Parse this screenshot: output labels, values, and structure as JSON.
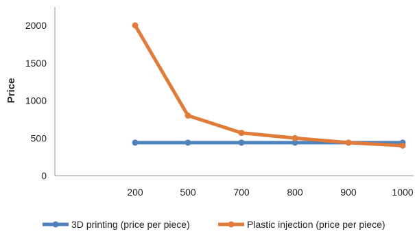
{
  "chart_data": {
    "type": "line",
    "title": "",
    "xlabel": "",
    "ylabel": "Price",
    "categories": [
      "200",
      "500",
      "700",
      "800",
      "900",
      "1000"
    ],
    "ylim": [
      0,
      2000
    ],
    "yticks": [
      0,
      500,
      1000,
      1500,
      2000
    ],
    "grid": false,
    "legend_position": "bottom",
    "series": [
      {
        "name": "3D printing (price per piece)",
        "color": "#4f81bd",
        "values": [
          440,
          440,
          440,
          440,
          440,
          440
        ]
      },
      {
        "name": "Plastic injection (price per piece)",
        "color": "#e07b39",
        "values": [
          2000,
          800,
          570,
          500,
          440,
          400
        ]
      }
    ]
  }
}
